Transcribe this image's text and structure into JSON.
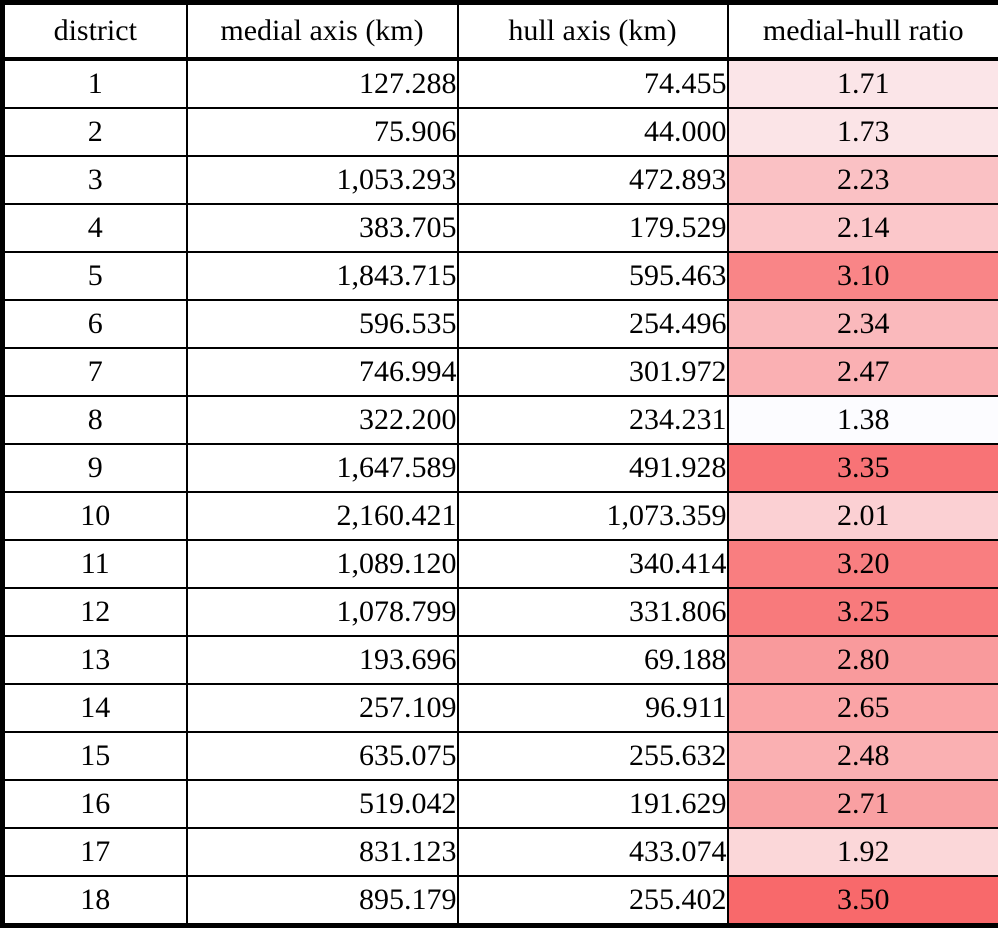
{
  "table": {
    "columns": [
      {
        "label": "district"
      },
      {
        "label": "medial axis (km)"
      },
      {
        "label": "hull axis (km)"
      },
      {
        "label": "medial-hull ratio"
      }
    ],
    "rows": [
      {
        "district": "1",
        "medial_axis": "127.288",
        "hull_axis": "74.455",
        "ratio": "1.71",
        "ratio_color": "#FBE5E8"
      },
      {
        "district": "2",
        "medial_axis": "75.906",
        "hull_axis": "44.000",
        "ratio": "1.73",
        "ratio_color": "#FBE4E7"
      },
      {
        "district": "3",
        "medial_axis": "1,053.293",
        "hull_axis": "472.893",
        "ratio": "2.23",
        "ratio_color": "#FAC1C4"
      },
      {
        "district": "4",
        "medial_axis": "383.705",
        "hull_axis": "179.529",
        "ratio": "2.14",
        "ratio_color": "#FBC7CA"
      },
      {
        "district": "5",
        "medial_axis": "1,843.715",
        "hull_axis": "595.463",
        "ratio": "3.10",
        "ratio_color": "#F98587"
      },
      {
        "district": "6",
        "medial_axis": "596.535",
        "hull_axis": "254.496",
        "ratio": "2.34",
        "ratio_color": "#FAB9BC"
      },
      {
        "district": "7",
        "medial_axis": "746.994",
        "hull_axis": "301.972",
        "ratio": "2.47",
        "ratio_color": "#FAB0B3"
      },
      {
        "district": "8",
        "medial_axis": "322.200",
        "hull_axis": "234.231",
        "ratio": "1.38",
        "ratio_color": "#FCFCFF"
      },
      {
        "district": "9",
        "medial_axis": "1,647.589",
        "hull_axis": "491.928",
        "ratio": "3.35",
        "ratio_color": "#F87376"
      },
      {
        "district": "10",
        "medial_axis": "2,160.421",
        "hull_axis": "1,073.359",
        "ratio": "2.01",
        "ratio_color": "#FBD0D3"
      },
      {
        "district": "11",
        "medial_axis": "1,089.120",
        "hull_axis": "340.414",
        "ratio": "3.20",
        "ratio_color": "#F97E80"
      },
      {
        "district": "12",
        "medial_axis": "1,078.799",
        "hull_axis": "331.806",
        "ratio": "3.25",
        "ratio_color": "#F87A7C"
      },
      {
        "district": "13",
        "medial_axis": "193.696",
        "hull_axis": "69.188",
        "ratio": "2.80",
        "ratio_color": "#F99A9C"
      },
      {
        "district": "14",
        "medial_axis": "257.109",
        "hull_axis": "96.911",
        "ratio": "2.65",
        "ratio_color": "#FAA4A6"
      },
      {
        "district": "15",
        "medial_axis": "635.075",
        "hull_axis": "255.632",
        "ratio": "2.48",
        "ratio_color": "#FAB0B2"
      },
      {
        "district": "16",
        "medial_axis": "519.042",
        "hull_axis": "191.629",
        "ratio": "2.71",
        "ratio_color": "#F9A0A2"
      },
      {
        "district": "17",
        "medial_axis": "831.123",
        "hull_axis": "433.074",
        "ratio": "1.92",
        "ratio_color": "#FBD7D9"
      },
      {
        "district": "18",
        "medial_axis": "895.179",
        "hull_axis": "255.402",
        "ratio": "3.50",
        "ratio_color": "#F8696B"
      }
    ]
  },
  "colors": {
    "grid_border": "#000000",
    "cell_background": "#FFFFFF",
    "text": "#000000",
    "ratio_scale_min_color": "#FCFCFF",
    "ratio_scale_max_color": "#F8696B"
  },
  "chart_data": {
    "type": "table",
    "title": "",
    "columns": [
      "district",
      "medial axis (km)",
      "hull axis (km)",
      "medial-hull ratio"
    ],
    "rows": [
      [
        1,
        127.288,
        74.455,
        1.71
      ],
      [
        2,
        75.906,
        44.0,
        1.73
      ],
      [
        3,
        1053.293,
        472.893,
        2.23
      ],
      [
        4,
        383.705,
        179.529,
        2.14
      ],
      [
        5,
        1843.715,
        595.463,
        3.1
      ],
      [
        6,
        596.535,
        254.496,
        2.34
      ],
      [
        7,
        746.994,
        301.972,
        2.47
      ],
      [
        8,
        322.2,
        234.231,
        1.38
      ],
      [
        9,
        1647.589,
        491.928,
        3.35
      ],
      [
        10,
        2160.421,
        1073.359,
        2.01
      ],
      [
        11,
        1089.12,
        340.414,
        3.2
      ],
      [
        12,
        1078.799,
        331.806,
        3.25
      ],
      [
        13,
        193.696,
        69.188,
        2.8
      ],
      [
        14,
        257.109,
        96.911,
        2.65
      ],
      [
        15,
        635.075,
        255.632,
        2.48
      ],
      [
        16,
        519.042,
        191.629,
        2.71
      ],
      [
        17,
        831.123,
        433.074,
        1.92
      ],
      [
        18,
        895.179,
        255.402,
        3.5
      ]
    ],
    "conditional_format": {
      "column": "medial-hull ratio",
      "style": "2-color-scale",
      "min_value": 1.38,
      "max_value": 3.5,
      "min_color": "#FCFCFF",
      "max_color": "#F8696B"
    }
  }
}
